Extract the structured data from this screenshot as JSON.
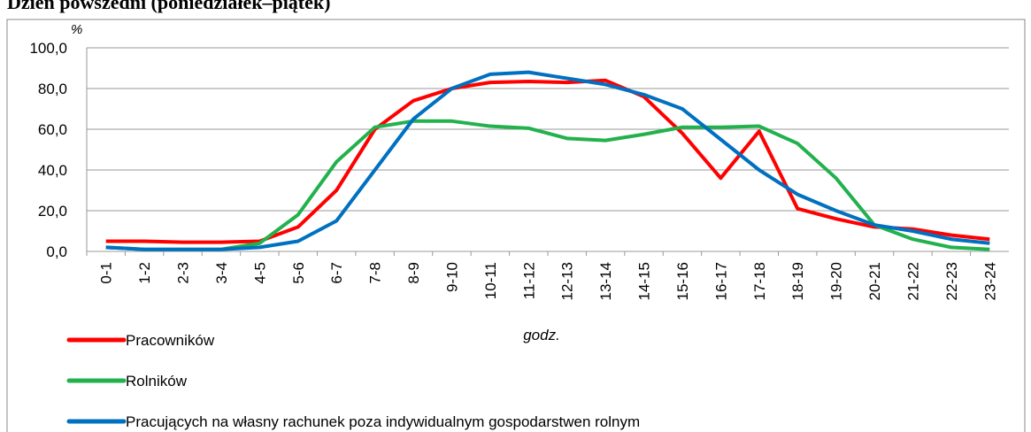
{
  "chart_data": {
    "type": "line",
    "title": "Dzień powszedni (poniedziałek–piątek)",
    "y_unit": "%",
    "x_label": "godz.",
    "categories": [
      "0-1",
      "1-2",
      "2-3",
      "3-4",
      "4-5",
      "5-6",
      "6-7",
      "7-8",
      "8-9",
      "9-10",
      "10-11",
      "11-12",
      "12-13",
      "13-14",
      "14-15",
      "15-16",
      "16-17",
      "17-18",
      "18-19",
      "19-20",
      "20-21",
      "21-22",
      "22-23",
      "23-24"
    ],
    "series": [
      {
        "name": "Pracowników",
        "color": "#ff0000",
        "values": [
          5,
          5,
          4.5,
          4.5,
          5,
          12,
          30,
          60,
          74,
          80,
          83,
          83.5,
          83,
          84,
          76,
          58,
          36,
          59,
          21,
          16,
          12,
          11,
          8,
          6
        ]
      },
      {
        "name": "Rolników",
        "color": "#22b14c",
        "values": [
          2,
          1,
          1,
          1,
          4,
          18,
          44,
          61,
          64,
          64,
          61.5,
          60.5,
          55.5,
          54.5,
          57.5,
          61,
          61,
          61.5,
          53,
          36,
          13,
          6,
          2,
          1
        ]
      },
      {
        "name": "Pracujących na własny rachunek poza indywidualnym gospodarstwen rolnym",
        "color": "#0070c0",
        "values": [
          2,
          1,
          1,
          1,
          2,
          5,
          15,
          40,
          65,
          80,
          87,
          88,
          85,
          82,
          77,
          70,
          55,
          40,
          28,
          20,
          13,
          10,
          6,
          4
        ]
      }
    ],
    "ylim": [
      0,
      100
    ],
    "yticks": [
      {
        "value": 0,
        "label": "0,0"
      },
      {
        "value": 20,
        "label": "20,0"
      },
      {
        "value": 40,
        "label": "40,0"
      },
      {
        "value": 60,
        "label": "60,0"
      },
      {
        "value": 80,
        "label": "80,0"
      },
      {
        "value": 100,
        "label": "100,0"
      }
    ],
    "grid": true
  }
}
